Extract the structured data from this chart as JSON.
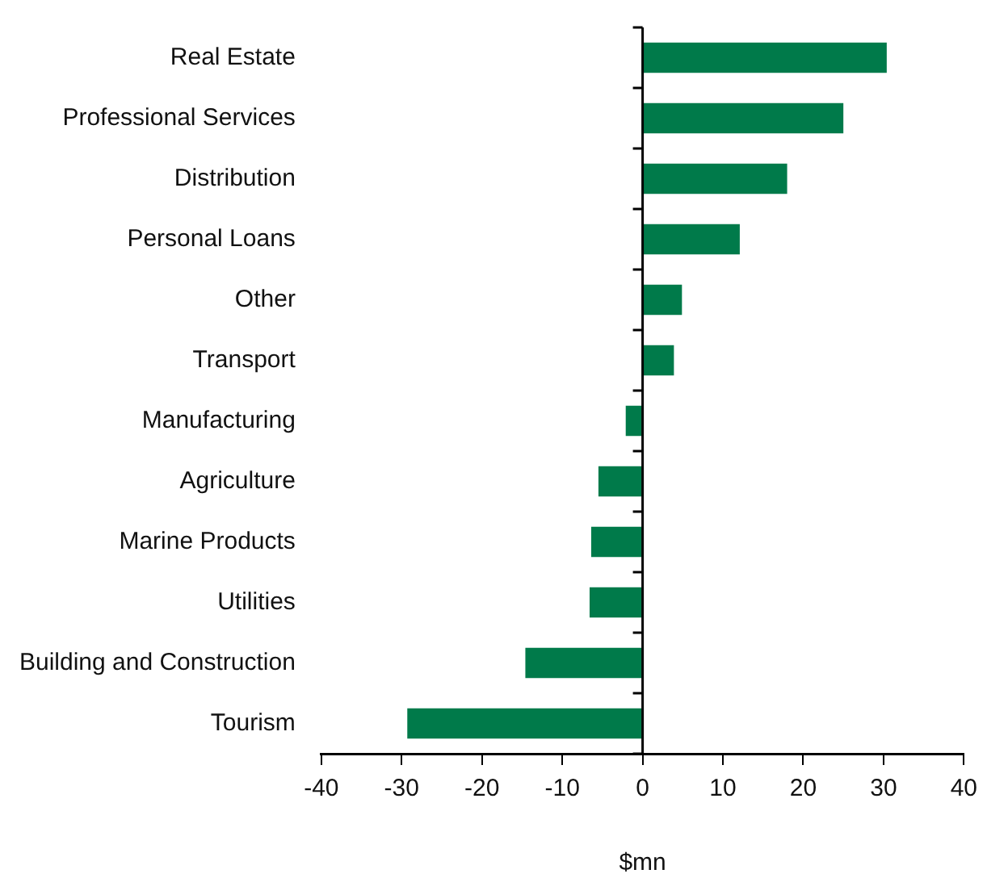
{
  "chart_data": {
    "type": "bar",
    "orientation": "horizontal",
    "xlabel": "$mn",
    "categories": [
      "Real Estate",
      "Professional Services",
      "Distribution",
      "Personal Loans",
      "Other",
      "Transport",
      "Manufacturing",
      "Agriculture",
      "Marine Products",
      "Utilities",
      "Building and Construction",
      "Tourism"
    ],
    "values": [
      30.4,
      25.0,
      18.0,
      12.1,
      4.9,
      3.9,
      -2.1,
      -5.5,
      -6.4,
      -6.6,
      -14.6,
      -29.3
    ],
    "color": "#007a4a",
    "xlim": [
      -40,
      40
    ],
    "xticks": [
      -40,
      -30,
      -20,
      -10,
      0,
      10,
      20,
      30,
      40
    ]
  }
}
